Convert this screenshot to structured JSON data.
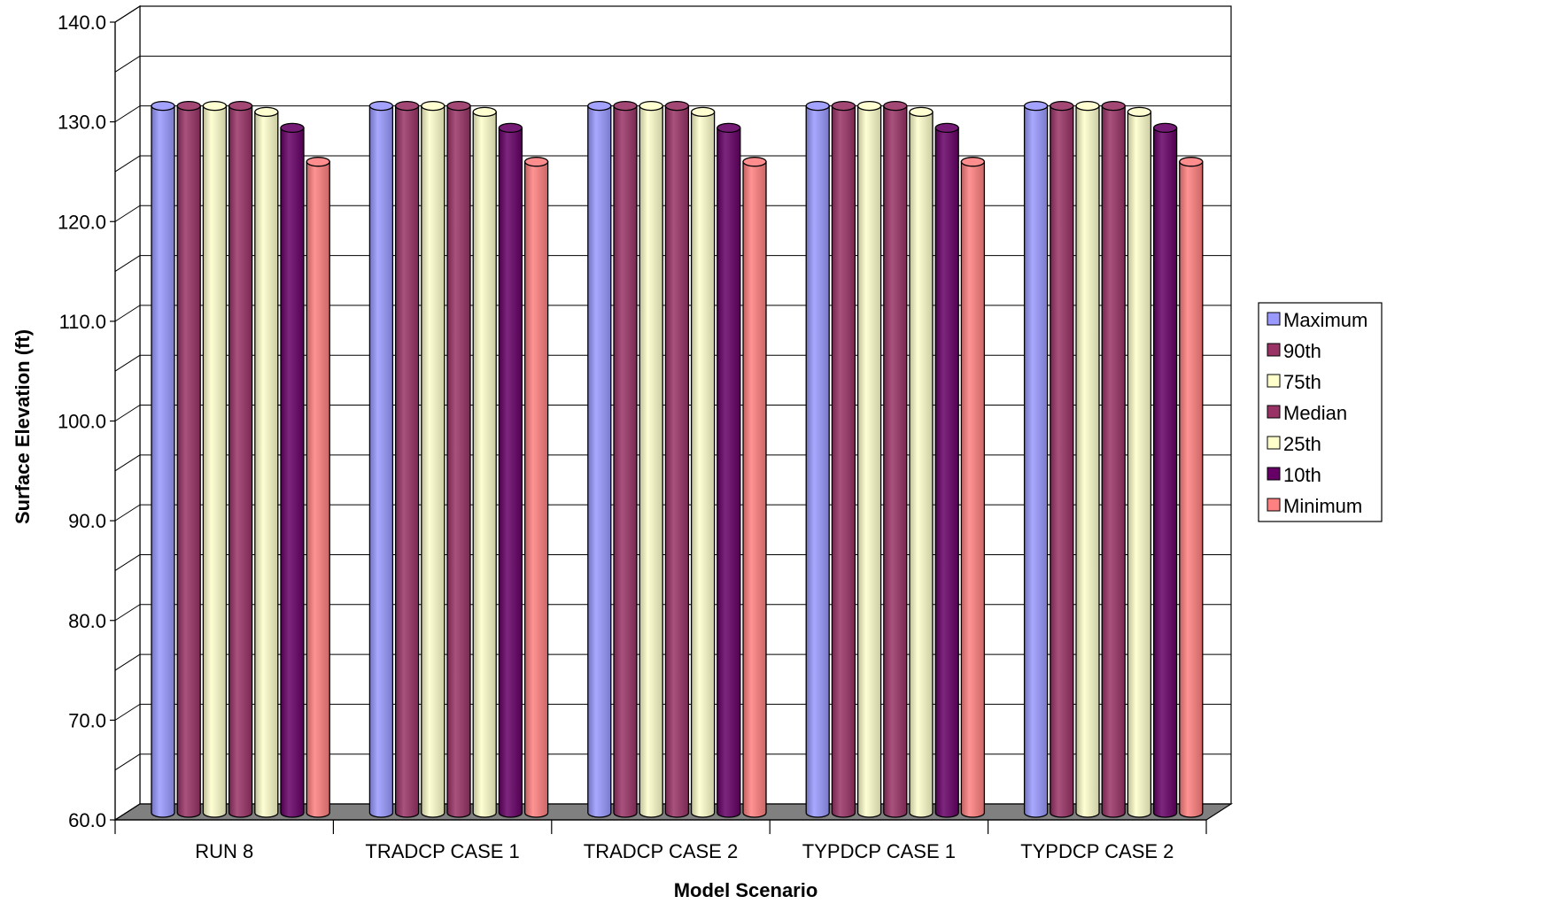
{
  "chart_data": {
    "type": "bar",
    "style": "3d-cylinder",
    "xlabel": "Model Scenario",
    "ylabel": "Surface Elevation (ft)",
    "ylim": [
      60.0,
      140.0
    ],
    "yticks": [
      "60.0",
      "70.0",
      "80.0",
      "90.0",
      "100.0",
      "110.0",
      "120.0",
      "130.0",
      "140.0"
    ],
    "grid": true,
    "legend_position": "right",
    "categories": [
      "RUN 8",
      "TRADCP CASE 1",
      "TRADCP CASE 2",
      "TYPDCP CASE 1",
      "TYPDCP CASE 2"
    ],
    "series": [
      {
        "name": "Maximum",
        "color": "#9999ff",
        "values": [
          130.8,
          130.8,
          130.8,
          130.8,
          130.8
        ]
      },
      {
        "name": "90th",
        "color": "#993366",
        "values": [
          130.8,
          130.8,
          130.8,
          130.8,
          130.8
        ]
      },
      {
        "name": "75th",
        "color": "#ffffcc",
        "values": [
          130.8,
          130.8,
          130.8,
          130.8,
          130.8
        ]
      },
      {
        "name": "Median",
        "color": "#993366",
        "values": [
          130.8,
          130.8,
          130.8,
          130.8,
          130.8
        ]
      },
      {
        "name": "25th",
        "color": "#ffffcc",
        "values": [
          130.2,
          130.2,
          130.2,
          130.2,
          130.2
        ]
      },
      {
        "name": "10th",
        "color": "#660066",
        "values": [
          128.6,
          128.6,
          128.6,
          128.6,
          128.6
        ]
      },
      {
        "name": "Minimum",
        "color": "#ff8080",
        "values": [
          125.2,
          125.2,
          125.2,
          125.2,
          125.2
        ]
      }
    ]
  }
}
